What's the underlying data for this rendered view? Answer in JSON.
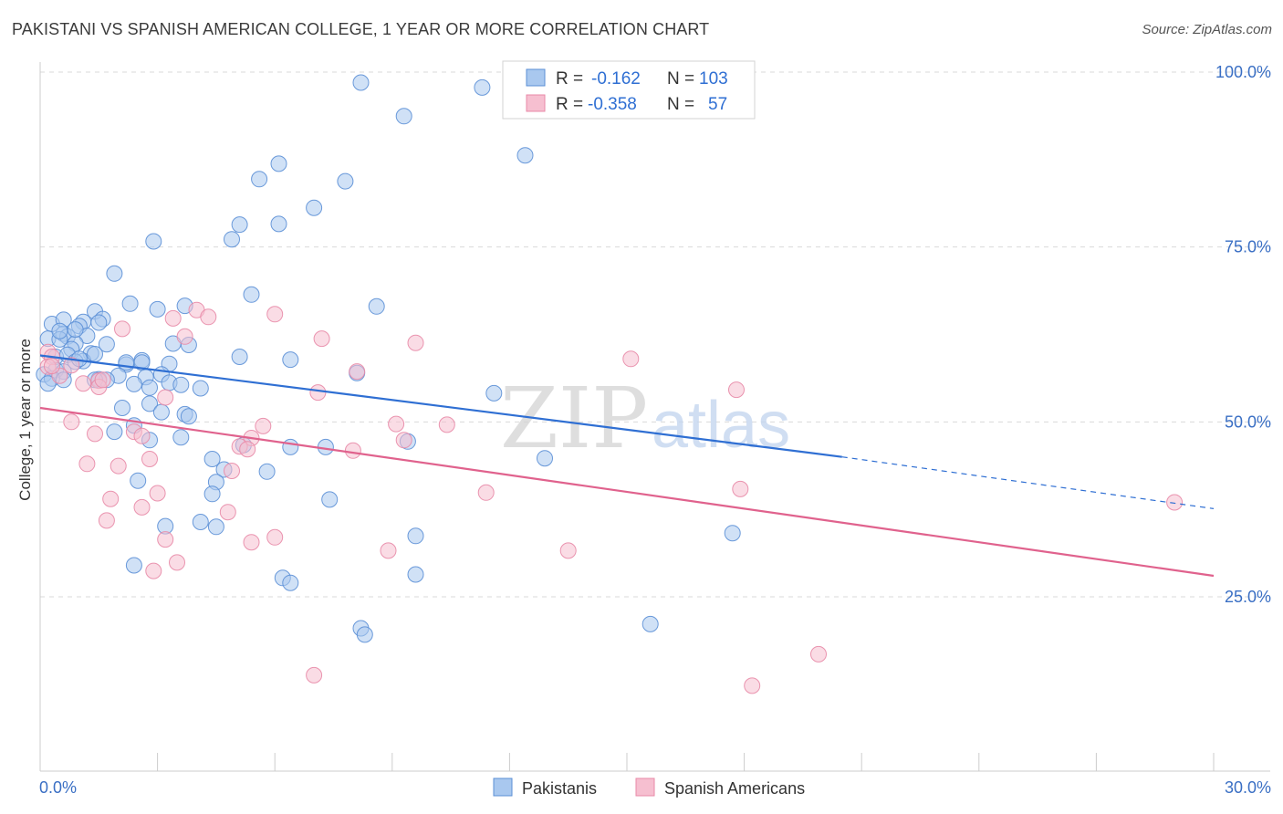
{
  "title": "PAKISTANI VS SPANISH AMERICAN COLLEGE, 1 YEAR OR MORE CORRELATION CHART",
  "source": "Source: ZipAtlas.com",
  "watermark": {
    "zip": "ZIP",
    "atlas": "atlas"
  },
  "colors": {
    "blue_fill": "#a9c8ef",
    "blue_stroke": "#5b8fd6",
    "blue_line": "#2f6fd3",
    "pink_fill": "#f6bfd0",
    "pink_stroke": "#e889a7",
    "pink_line": "#e0628d",
    "axis_label": "#3a6fc4",
    "grid": "#d9d9d9"
  },
  "legend": {
    "row1": {
      "r_label": "R =",
      "r_value": "-0.162",
      "n_label": "N =",
      "n_value": "103"
    },
    "row2": {
      "r_label": "R =",
      "r_value": "-0.358",
      "n_label": "N =",
      "n_value": "57"
    }
  },
  "bottom_legend": {
    "series1": "Pakistanis",
    "series2": "Spanish Americans"
  },
  "chart_data": {
    "type": "scatter",
    "title": "PAKISTANI VS SPANISH AMERICAN COLLEGE, 1 YEAR OR MORE CORRELATION CHART",
    "xlabel": "",
    "ylabel": "College, 1 year or more",
    "xlim": [
      0,
      30
    ],
    "ylim": [
      0,
      104
    ],
    "x_tick_labels": [
      "0.0%",
      "30.0%"
    ],
    "y_ticks": [
      25,
      50,
      75,
      100
    ],
    "y_tick_labels": [
      "25.0%",
      "50.0%",
      "75.0%",
      "100.0%"
    ],
    "series": [
      {
        "name": "Pakistanis",
        "r": -0.162,
        "n": 103,
        "trend": {
          "x0": 0,
          "y0": 59.5,
          "x1": 20.5,
          "y1": 45.0,
          "dash_to_x": 30,
          "dash_to_y": 37.6
        },
        "points": [
          [
            8.2,
            98.5
          ],
          [
            11.3,
            97.8
          ],
          [
            9.3,
            93.7
          ],
          [
            12.4,
            88.1
          ],
          [
            6.1,
            86.9
          ],
          [
            5.6,
            84.7
          ],
          [
            7.8,
            84.4
          ],
          [
            7.0,
            80.6
          ],
          [
            5.1,
            78.2
          ],
          [
            6.1,
            78.3
          ],
          [
            4.9,
            76.1
          ],
          [
            2.9,
            75.8
          ],
          [
            1.9,
            71.2
          ],
          [
            5.4,
            68.2
          ],
          [
            2.3,
            66.9
          ],
          [
            3.0,
            66.1
          ],
          [
            3.7,
            66.6
          ],
          [
            8.6,
            66.5
          ],
          [
            1.4,
            65.8
          ],
          [
            0.3,
            64.0
          ],
          [
            0.6,
            64.6
          ],
          [
            1.1,
            64.3
          ],
          [
            1.6,
            64.7
          ],
          [
            1.0,
            63.7
          ],
          [
            1.2,
            62.3
          ],
          [
            0.6,
            62.6
          ],
          [
            0.2,
            61.9
          ],
          [
            0.7,
            62.2
          ],
          [
            0.5,
            61.8
          ],
          [
            0.9,
            61.2
          ],
          [
            0.8,
            60.4
          ],
          [
            3.4,
            61.2
          ],
          [
            3.8,
            61.0
          ],
          [
            1.7,
            61.1
          ],
          [
            1.3,
            59.8
          ],
          [
            0.4,
            59.3
          ],
          [
            0.7,
            59.6
          ],
          [
            5.1,
            59.3
          ],
          [
            6.4,
            58.9
          ],
          [
            2.6,
            58.8
          ],
          [
            2.6,
            58.5
          ],
          [
            3.3,
            58.3
          ],
          [
            2.2,
            58.2
          ],
          [
            1.1,
            58.7
          ],
          [
            0.4,
            57.4
          ],
          [
            0.1,
            56.8
          ],
          [
            0.6,
            57.2
          ],
          [
            0.3,
            56.2
          ],
          [
            8.1,
            57.0
          ],
          [
            3.1,
            56.8
          ],
          [
            2.0,
            56.6
          ],
          [
            2.7,
            56.4
          ],
          [
            1.5,
            56.1
          ],
          [
            1.7,
            56.0
          ],
          [
            3.3,
            55.6
          ],
          [
            3.6,
            55.3
          ],
          [
            2.4,
            55.4
          ],
          [
            2.8,
            54.9
          ],
          [
            4.1,
            54.8
          ],
          [
            0.6,
            56.0
          ],
          [
            11.6,
            54.1
          ],
          [
            2.8,
            52.6
          ],
          [
            2.1,
            52.0
          ],
          [
            3.1,
            51.4
          ],
          [
            3.7,
            51.1
          ],
          [
            3.8,
            50.8
          ],
          [
            2.4,
            49.5
          ],
          [
            1.9,
            48.6
          ],
          [
            9.4,
            47.2
          ],
          [
            2.8,
            47.4
          ],
          [
            3.6,
            47.8
          ],
          [
            5.2,
            46.7
          ],
          [
            6.4,
            46.4
          ],
          [
            7.3,
            46.4
          ],
          [
            12.9,
            44.8
          ],
          [
            4.4,
            44.7
          ],
          [
            4.7,
            43.2
          ],
          [
            5.8,
            42.9
          ],
          [
            2.5,
            41.6
          ],
          [
            4.5,
            41.4
          ],
          [
            4.4,
            39.7
          ],
          [
            7.4,
            38.9
          ],
          [
            4.1,
            35.7
          ],
          [
            4.5,
            35.0
          ],
          [
            3.2,
            35.1
          ],
          [
            9.6,
            33.7
          ],
          [
            17.7,
            34.1
          ],
          [
            2.4,
            29.5
          ],
          [
            9.6,
            28.2
          ],
          [
            6.2,
            27.7
          ],
          [
            6.4,
            27.0
          ],
          [
            8.2,
            20.5
          ],
          [
            8.3,
            19.6
          ],
          [
            15.6,
            21.1
          ],
          [
            0.2,
            55.5
          ],
          [
            0.9,
            58.6
          ],
          [
            1.4,
            59.7
          ],
          [
            2.2,
            58.5
          ],
          [
            0.5,
            63.0
          ],
          [
            1.5,
            64.2
          ],
          [
            0.9,
            63.2
          ],
          [
            1.4,
            56.0
          ],
          [
            1.0,
            59.0
          ]
        ]
      },
      {
        "name": "Spanish Americans",
        "r": -0.358,
        "n": 57,
        "trend": {
          "x0": 0,
          "y0": 52.0,
          "x1": 30,
          "y1": 28.0
        },
        "points": [
          [
            4.0,
            66.0
          ],
          [
            4.3,
            65.0
          ],
          [
            6.0,
            65.4
          ],
          [
            3.4,
            64.8
          ],
          [
            2.1,
            63.3
          ],
          [
            7.2,
            61.9
          ],
          [
            9.6,
            61.3
          ],
          [
            3.7,
            62.2
          ],
          [
            0.2,
            60.0
          ],
          [
            0.3,
            59.3
          ],
          [
            15.1,
            59.0
          ],
          [
            0.8,
            58.1
          ],
          [
            8.1,
            57.2
          ],
          [
            0.2,
            57.9
          ],
          [
            0.5,
            56.6
          ],
          [
            1.5,
            55.9
          ],
          [
            1.1,
            55.5
          ],
          [
            1.5,
            55.0
          ],
          [
            7.1,
            54.2
          ],
          [
            17.8,
            54.6
          ],
          [
            3.2,
            53.5
          ],
          [
            0.8,
            50.0
          ],
          [
            5.7,
            49.4
          ],
          [
            9.1,
            49.7
          ],
          [
            10.4,
            49.6
          ],
          [
            2.4,
            48.6
          ],
          [
            1.4,
            48.3
          ],
          [
            2.6,
            48.0
          ],
          [
            5.4,
            47.7
          ],
          [
            9.3,
            47.4
          ],
          [
            5.1,
            46.5
          ],
          [
            5.3,
            46.1
          ],
          [
            8.0,
            45.9
          ],
          [
            2.8,
            44.7
          ],
          [
            1.2,
            44.0
          ],
          [
            2.0,
            43.7
          ],
          [
            4.9,
            43.0
          ],
          [
            11.4,
            39.9
          ],
          [
            3.0,
            39.8
          ],
          [
            1.8,
            39.0
          ],
          [
            17.9,
            40.4
          ],
          [
            2.6,
            37.8
          ],
          [
            4.8,
            37.1
          ],
          [
            1.7,
            35.9
          ],
          [
            6.0,
            33.5
          ],
          [
            3.2,
            33.2
          ],
          [
            5.4,
            32.8
          ],
          [
            8.9,
            31.6
          ],
          [
            13.5,
            31.6
          ],
          [
            3.5,
            29.9
          ],
          [
            2.9,
            28.7
          ],
          [
            29.0,
            38.5
          ],
          [
            19.9,
            16.8
          ],
          [
            7.0,
            13.8
          ],
          [
            18.2,
            12.3
          ],
          [
            0.3,
            58.0
          ],
          [
            1.6,
            56.0
          ]
        ]
      }
    ]
  }
}
